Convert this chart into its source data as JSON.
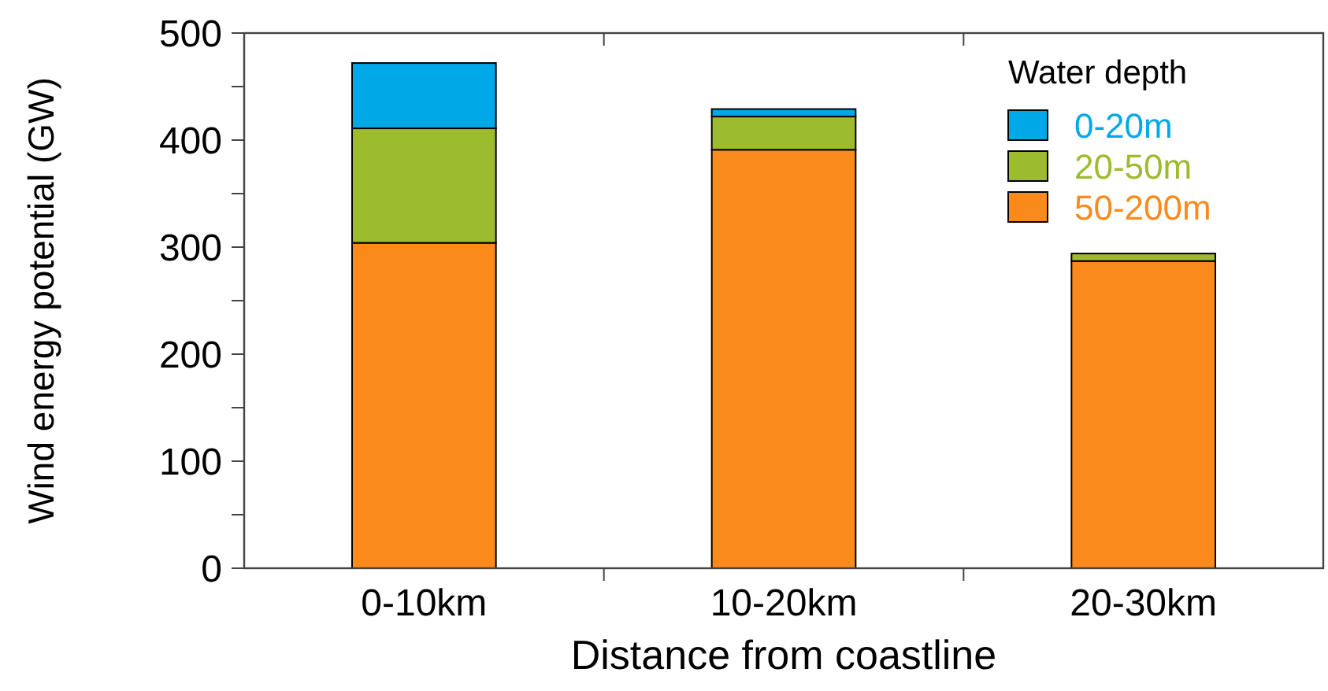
{
  "chart_data": {
    "type": "bar",
    "stacked": true,
    "xlabel": "Distance from coastline",
    "ylabel": "Wind energy potential (GW)",
    "legend_title": "Water depth",
    "legend": "top right",
    "categories": [
      "0-10km",
      "10-20km",
      "20-30km"
    ],
    "series": [
      {
        "name": "50-200m",
        "color": "#fb8a1c",
        "values": [
          304,
          391,
          287
        ]
      },
      {
        "name": "20-50m",
        "color": "#9cbb2e",
        "values": [
          107,
          31,
          7
        ]
      },
      {
        "name": "0-20m",
        "color": "#00a8e8",
        "values": [
          61,
          7,
          0
        ]
      }
    ],
    "ylim": [
      0,
      500
    ],
    "yticks": [
      0,
      {
        "value": 50,
        "label": null
      },
      100,
      {
        "value": 150,
        "label": null
      },
      200,
      {
        "value": 250,
        "label": null
      },
      300,
      {
        "value": 350,
        "label": null
      },
      400,
      {
        "value": 450,
        "label": null
      },
      500
    ],
    "grid": false
  }
}
